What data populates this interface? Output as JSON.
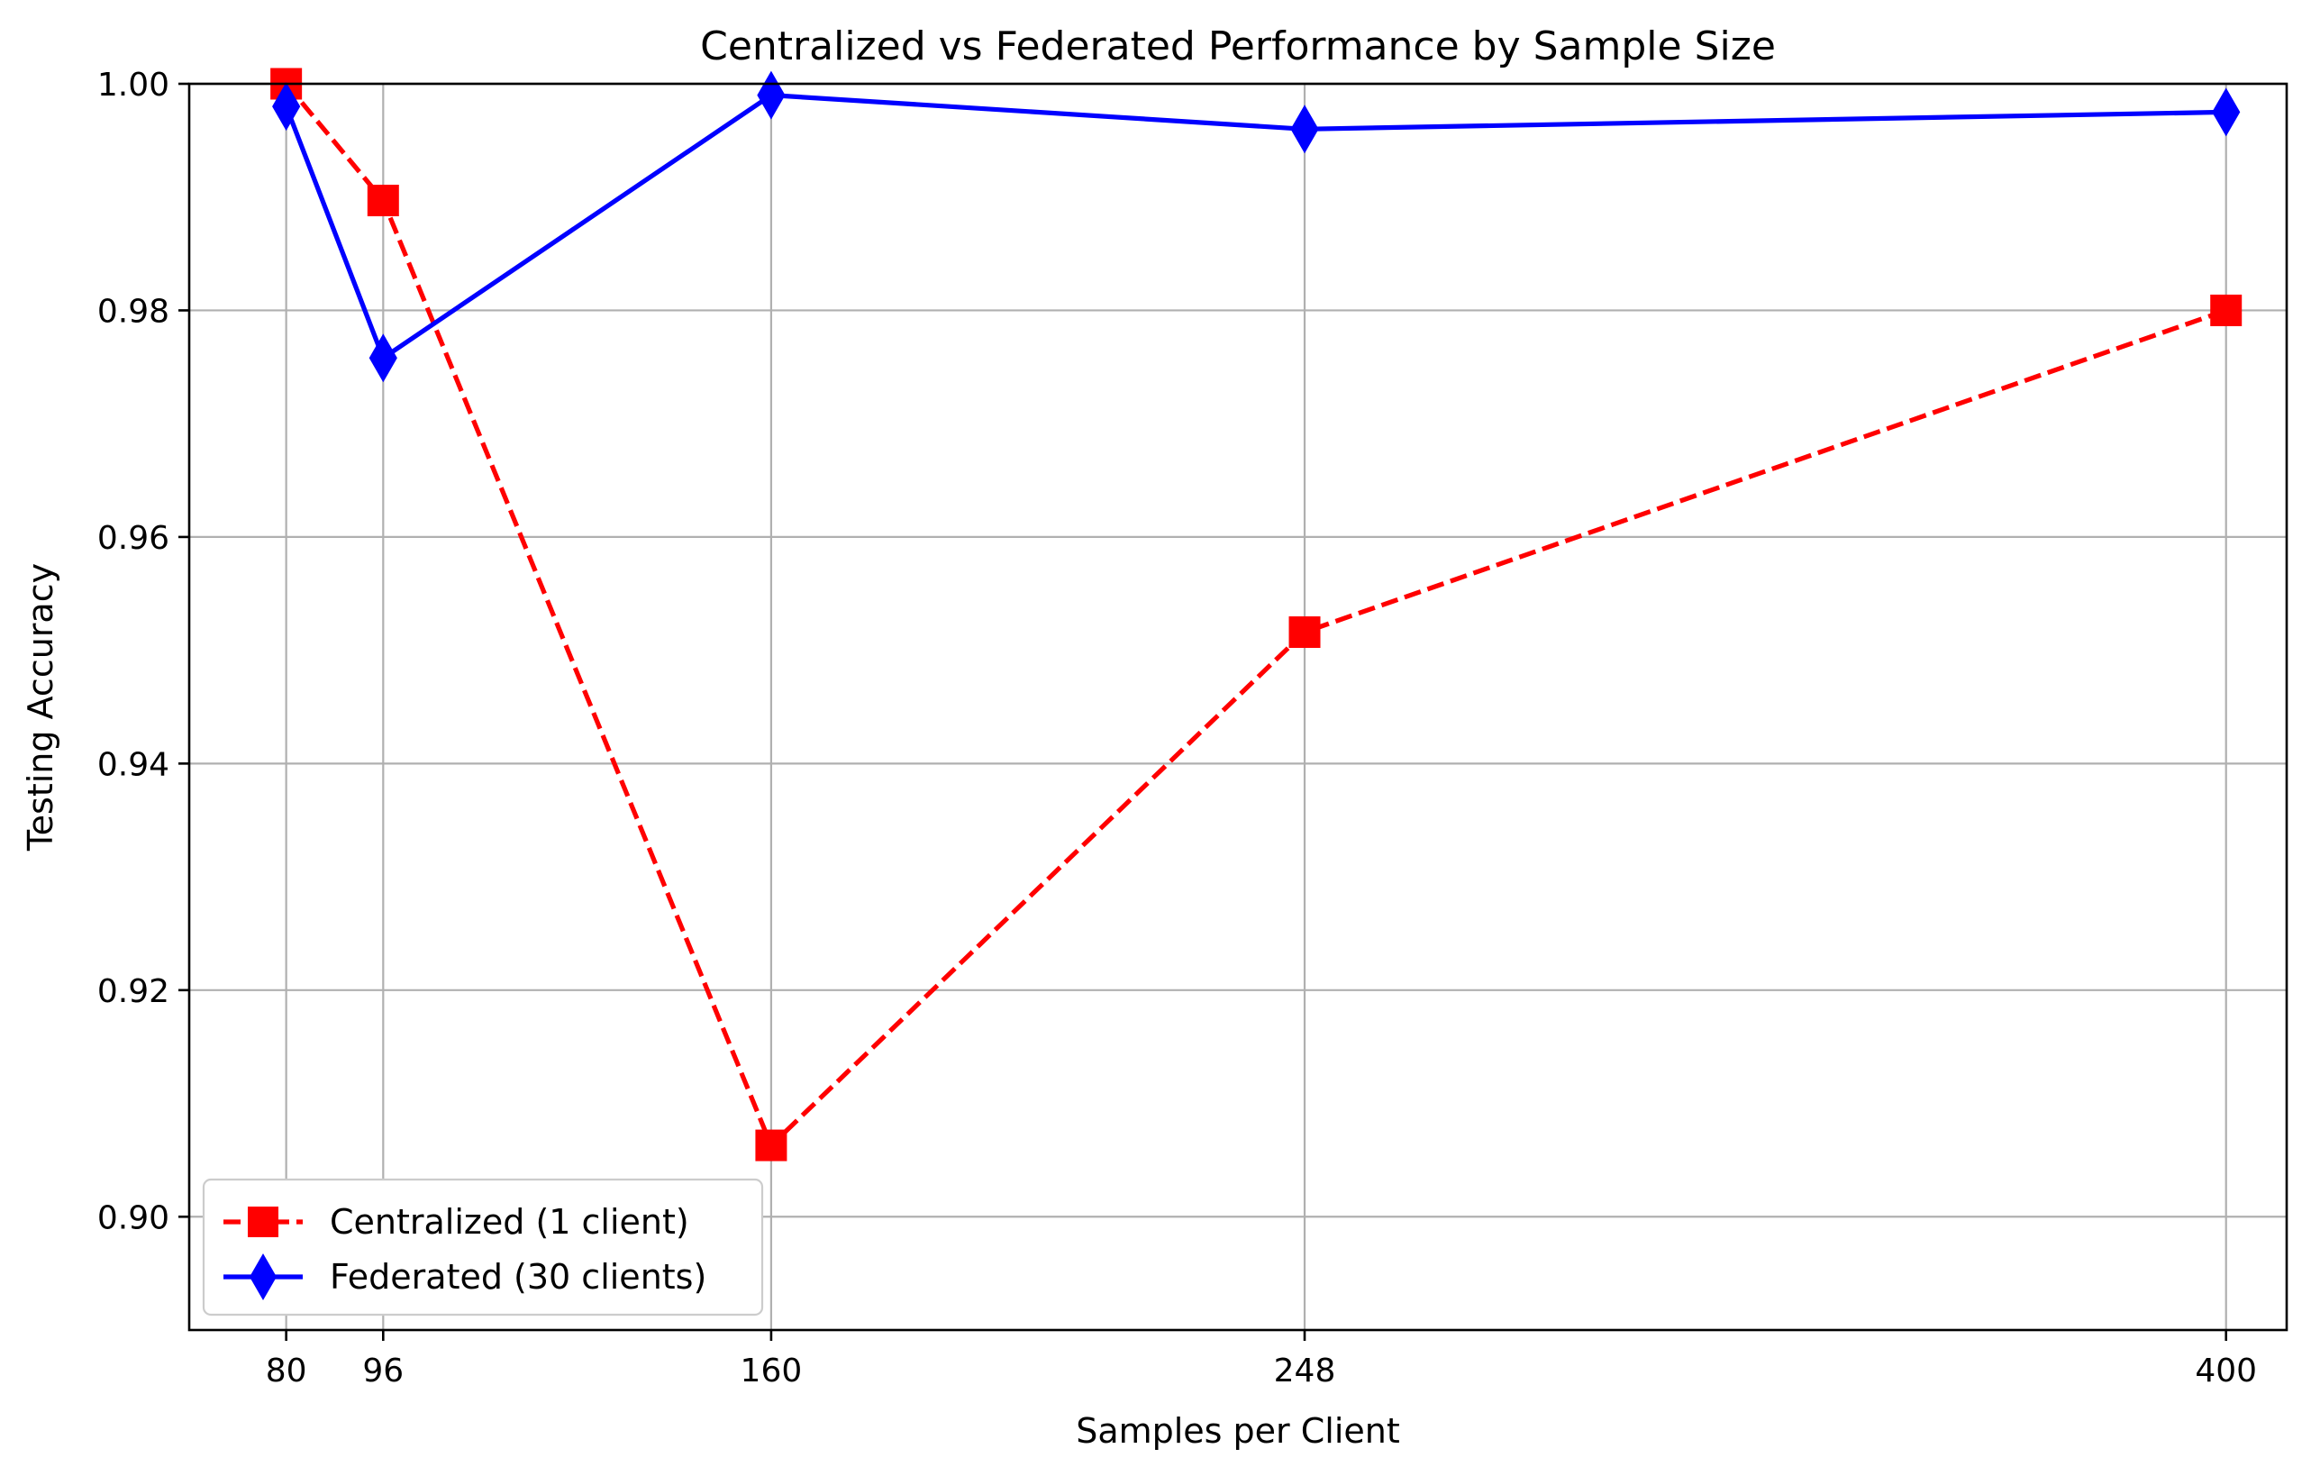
{
  "chart_data": {
    "type": "line",
    "title": "Centralized vs Federated Performance by Sample Size",
    "xlabel": "Samples per Client",
    "ylabel": "Testing Accuracy",
    "x": [
      80,
      96,
      160,
      248,
      400
    ],
    "x_tick_labels": [
      "80",
      "96",
      "160",
      "248",
      "400"
    ],
    "xlim": [
      64,
      410
    ],
    "ylim": [
      0.89,
      1.0
    ],
    "y_ticks": [
      0.9,
      0.92,
      0.94,
      0.96,
      0.98,
      1.0
    ],
    "y_tick_labels": [
      "0.90",
      "0.92",
      "0.94",
      "0.96",
      "0.98",
      "1.00"
    ],
    "grid": true,
    "legend_position": "lower-left",
    "series": [
      {
        "name": "Centralized (1 client)",
        "values": [
          1.0,
          0.9897,
          0.9063,
          0.9516,
          0.98
        ],
        "color": "#ff0000",
        "line_style": "dashed",
        "marker": "square"
      },
      {
        "name": "Federated (30 clients)",
        "values": [
          0.998,
          0.9758,
          0.999,
          0.996,
          0.9975
        ],
        "color": "#0000ff",
        "line_style": "solid",
        "marker": "diamond"
      }
    ]
  }
}
